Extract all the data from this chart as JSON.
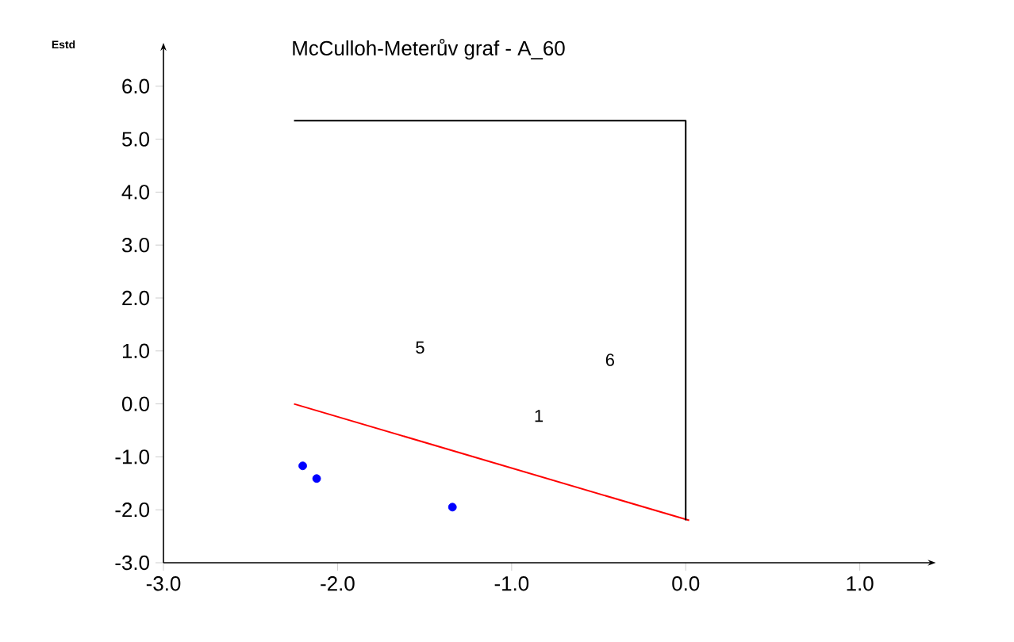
{
  "chart_data": {
    "type": "scatter",
    "title": "McCulloh-Meterův graf - A_60",
    "ylabel": "Estd",
    "xlim": [
      -3,
      1.4
    ],
    "ylim": [
      -3,
      6.7
    ],
    "xticks": [
      {
        "value": -3,
        "label": "-3.0"
      },
      {
        "value": -2,
        "label": "-2.0"
      },
      {
        "value": -1,
        "label": "-1.0"
      },
      {
        "value": 0,
        "label": "0.0"
      },
      {
        "value": 1,
        "label": "1.0"
      }
    ],
    "yticks": [
      {
        "value": -3,
        "label": "-3.0"
      },
      {
        "value": -2,
        "label": "-2.0"
      },
      {
        "value": -1,
        "label": "-1.0"
      },
      {
        "value": 0,
        "label": "0.0"
      },
      {
        "value": 1,
        "label": "1.0"
      },
      {
        "value": 2,
        "label": "2.0"
      },
      {
        "value": 3,
        "label": "3.0"
      },
      {
        "value": 4,
        "label": "4.0"
      },
      {
        "value": 5,
        "label": "5.0"
      },
      {
        "value": 6,
        "label": "6.0"
      }
    ],
    "grid": false,
    "series": [
      {
        "color": "#0000ff",
        "marker": "circle",
        "x": [
          -2.2,
          -2.12,
          -1.34
        ],
        "values": [
          -1.17,
          -1.41,
          -1.95
        ]
      },
      {
        "type": "line",
        "color": "#ff0000",
        "marker": "none",
        "x": [
          -2.25,
          0.02
        ],
        "values": [
          0.0,
          -2.2
        ]
      },
      {
        "type": "line",
        "color": "#000000",
        "marker": "none",
        "x": [
          -2.25,
          0.0,
          0.0
        ],
        "values": [
          5.35,
          5.35,
          -2.2
        ]
      }
    ],
    "annotations": [
      "5",
      "6",
      "1"
    ]
  }
}
